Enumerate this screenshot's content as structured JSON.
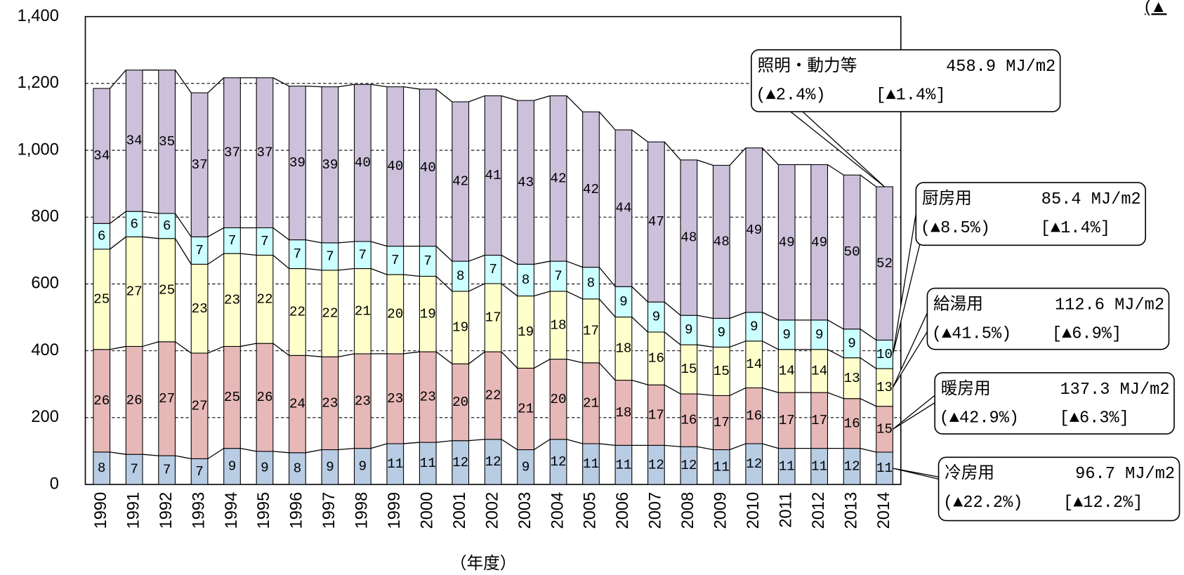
{
  "chart_data": {
    "type": "stacked_bar",
    "x_axis_title": "（年度）",
    "corner_note": "(▲",
    "categories": [
      "1990",
      "1991",
      "1992",
      "1993",
      "1994",
      "1995",
      "1996",
      "1997",
      "1998",
      "1999",
      "2000",
      "2001",
      "2002",
      "2003",
      "2004",
      "2005",
      "2006",
      "2007",
      "2008",
      "2009",
      "2010",
      "2011",
      "2012",
      "2013",
      "2014"
    ],
    "ylim": [
      0,
      1400
    ],
    "yticks": [
      0,
      200,
      400,
      600,
      800,
      {
        "value": 1000,
        "label": "1,000"
      },
      {
        "value": 1200,
        "label": "1,200"
      },
      {
        "value": 1400,
        "label": "1,400"
      }
    ],
    "grid": true,
    "series": [
      {
        "name": "冷房用",
        "color": "#b8cce4",
        "values": [
          97,
          90,
          86,
          77,
          108,
          99,
          95,
          104,
          108,
          122,
          126,
          131,
          135,
          104,
          135,
          122,
          117,
          117,
          113,
          104,
          122,
          108,
          108,
          108,
          96.7
        ],
        "shares": [
          8,
          7,
          7,
          7,
          9,
          9,
          8,
          9,
          9,
          11,
          11,
          12,
          12,
          9,
          12,
          11,
          11,
          12,
          12,
          11,
          12,
          11,
          11,
          12,
          11
        ],
        "callout": {
          "value_text": "96.7 MJ/m2",
          "change1": "(▲22.2%)",
          "change2": "[▲12.2%]"
        }
      },
      {
        "name": "暖房用",
        "color": "#e6b8b7",
        "values": [
          307,
          323,
          341,
          316,
          305,
          323,
          291,
          278,
          283,
          269,
          271,
          230,
          262,
          244,
          240,
          242,
          195,
          181,
          158,
          162,
          167,
          167,
          167,
          149,
          137.3
        ],
        "shares": [
          26,
          26,
          27,
          27,
          25,
          26,
          24,
          23,
          23,
          23,
          23,
          20,
          22,
          21,
          20,
          21,
          18,
          17,
          16,
          17,
          16,
          17,
          17,
          16,
          15
        ],
        "callout": {
          "value_text": "137.3 MJ/m2",
          "change1": "(▲42.9%)",
          "change2": "[▲6.3%]"
        }
      },
      {
        "name": "給湯用",
        "color": "#ffffcc",
        "values": [
          300,
          328,
          309,
          266,
          278,
          264,
          260,
          259,
          255,
          237,
          226,
          217,
          204,
          216,
          203,
          191,
          189,
          158,
          147,
          145,
          140,
          129,
          129,
          122,
          112.6
        ],
        "shares": [
          25,
          27,
          25,
          23,
          23,
          22,
          22,
          22,
          21,
          20,
          19,
          19,
          17,
          19,
          18,
          17,
          18,
          16,
          15,
          15,
          14,
          14,
          14,
          13,
          13
        ],
        "callout": {
          "value_text": "112.6 MJ/m2",
          "change1": "(▲41.5%)",
          "change2": "[▲6.9%]"
        }
      },
      {
        "name": "厨房用",
        "color": "#ccffff",
        "values": [
          77,
          76,
          75,
          82,
          77,
          82,
          86,
          82,
          81,
          85,
          90,
          90,
          85,
          95,
          90,
          95,
          91,
          90,
          88,
          86,
          86,
          88,
          88,
          86,
          85.4
        ],
        "shares": [
          6,
          6,
          6,
          7,
          7,
          7,
          7,
          7,
          7,
          7,
          7,
          8,
          7,
          8,
          7,
          8,
          9,
          9,
          9,
          9,
          9,
          9,
          9,
          9,
          10
        ],
        "callout": {
          "value_text": "85.4 MJ/m2",
          "change1": "(▲8.5%)",
          "change2": "[▲1.4%]"
        }
      },
      {
        "name": "照明・動力等",
        "color": "#ccc0da",
        "values": [
          404,
          423,
          429,
          431,
          449,
          449,
          460,
          467,
          470,
          477,
          470,
          477,
          477,
          490,
          495,
          465,
          469,
          479,
          465,
          458,
          492,
          465,
          465,
          461,
          458.9
        ],
        "shares": [
          34,
          34,
          35,
          37,
          37,
          37,
          39,
          39,
          40,
          40,
          40,
          42,
          41,
          43,
          42,
          42,
          44,
          47,
          48,
          48,
          49,
          49,
          49,
          50,
          52
        ],
        "callout": {
          "value_text": "458.9 MJ/m2",
          "change1": "(▲2.4%)",
          "change2": "[▲1.4%]"
        }
      }
    ]
  }
}
